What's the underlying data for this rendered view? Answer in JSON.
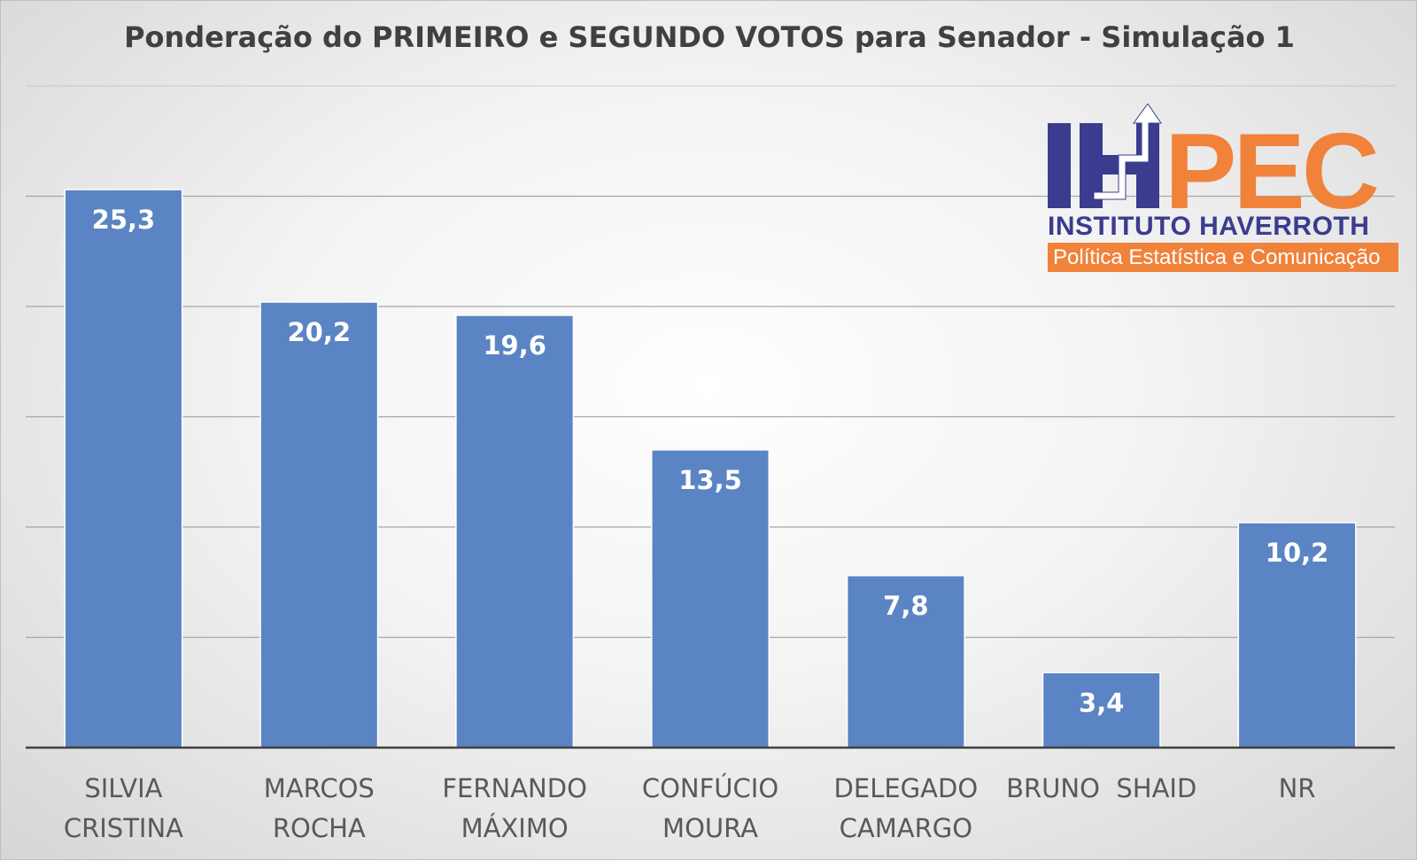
{
  "chart_data": {
    "type": "bar",
    "title": "Ponderação do PRIMEIRO e SEGUNDO VOTOS para Senador - Simulação 1",
    "categories": [
      [
        "SILVIA",
        "CRISTINA"
      ],
      [
        "MARCOS",
        "ROCHA"
      ],
      [
        "FERNANDO",
        "MÁXIMO"
      ],
      [
        "CONFÚCIO",
        "MOURA"
      ],
      [
        "DELEGADO",
        "CAMARGO"
      ],
      [
        "BRUNO  SHAID"
      ],
      [
        "NR"
      ]
    ],
    "values": [
      25.3,
      20.2,
      19.6,
      13.5,
      7.8,
      3.4,
      10.2
    ],
    "value_labels": [
      "25,3",
      "20,2",
      "19,6",
      "13,5",
      "7,8",
      "3,4",
      "10,2"
    ],
    "ylim": [
      0,
      30
    ],
    "gridline_step": 5,
    "xlabel": "",
    "ylabel": "",
    "legend": "none",
    "colors": {
      "bar": "#5b84c4",
      "grid": "#a6a6a6",
      "axis": "#404040"
    }
  },
  "logo": {
    "acronym": "IHPEC",
    "name": "INSTITUTO HAVERROTH",
    "tagline": "Política Estatística e Comunicação",
    "colors": {
      "blue": "#3b3b8f",
      "orange": "#f0823a"
    }
  }
}
